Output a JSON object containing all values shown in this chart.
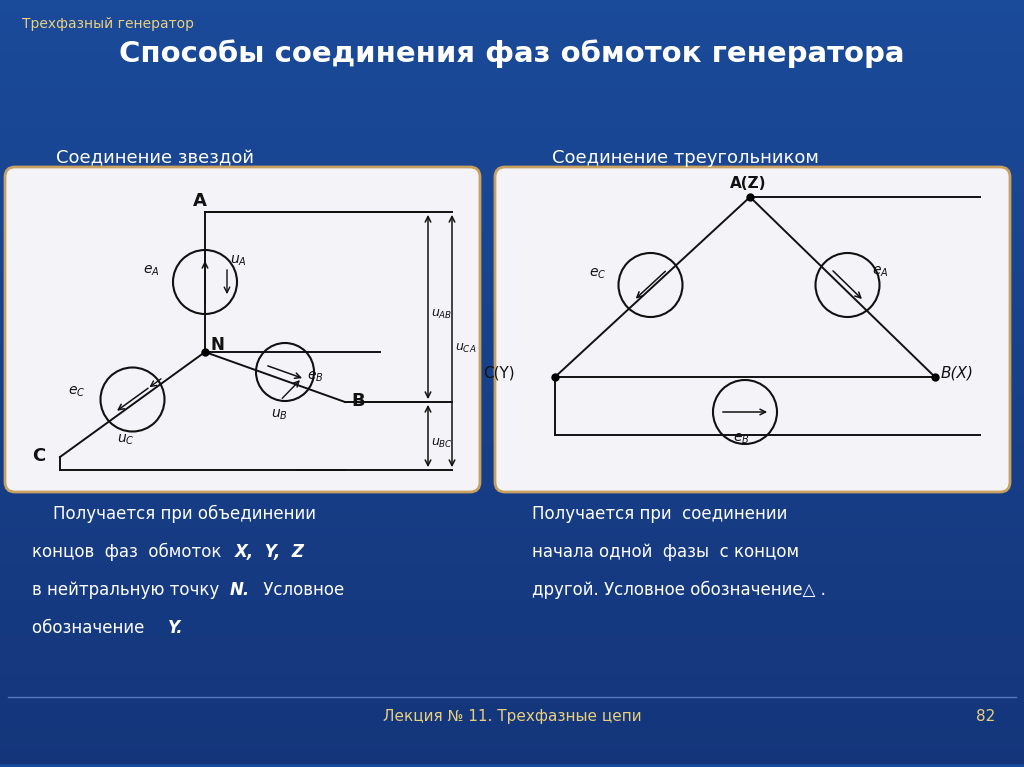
{
  "bg_color_top": "#1a4a9a",
  "bg_color_bottom": "#1a3a7a",
  "slide_title": "Способы соединения фаз обмоток генератора",
  "top_label": "Трехфазный генератор",
  "bottom_label": "Лекция № 11. Трехфазные цепи",
  "page_num": "82",
  "left_subtitle": "Соединение звездой",
  "right_subtitle": "Соединение треугольником",
  "box_bg": "#f4f4f8",
  "box_border": "#c8a060",
  "text_white": "#ffffff",
  "text_gold": "#e8d080",
  "diagram_color": "#111111"
}
